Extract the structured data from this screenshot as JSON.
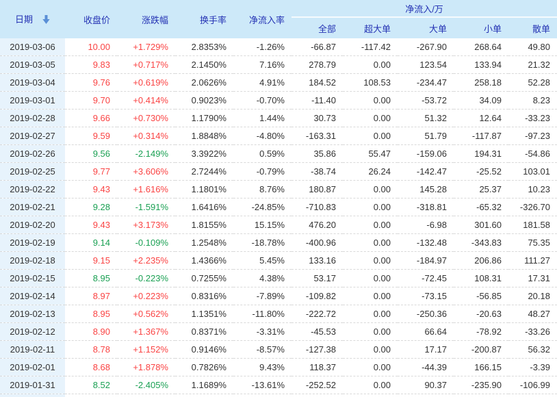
{
  "table": {
    "columns": {
      "date": "日期",
      "close": "收盘价",
      "change": "涨跌幅",
      "turnover": "换手率",
      "inflow_rate": "净流入率",
      "group": "净流入/万",
      "sub": [
        "全部",
        "超大单",
        "大单",
        "小单",
        "散单"
      ]
    },
    "sort_icon": "descending-arrow",
    "rows": [
      {
        "date": "2019-03-06",
        "close": "10.00",
        "change": "+1.729%",
        "turnover": "2.8353%",
        "inflow_rate": "-1.26%",
        "net_all": "-66.87",
        "net_super": "-117.42",
        "net_large": "-267.90",
        "net_small": "268.64",
        "net_retail": "49.80"
      },
      {
        "date": "2019-03-05",
        "close": "9.83",
        "change": "+0.717%",
        "turnover": "2.1450%",
        "inflow_rate": "7.16%",
        "net_all": "278.79",
        "net_super": "0.00",
        "net_large": "123.54",
        "net_small": "133.94",
        "net_retail": "21.32"
      },
      {
        "date": "2019-03-04",
        "close": "9.76",
        "change": "+0.619%",
        "turnover": "2.0626%",
        "inflow_rate": "4.91%",
        "net_all": "184.52",
        "net_super": "108.53",
        "net_large": "-234.47",
        "net_small": "258.18",
        "net_retail": "52.28"
      },
      {
        "date": "2019-03-01",
        "close": "9.70",
        "change": "+0.414%",
        "turnover": "0.9023%",
        "inflow_rate": "-0.70%",
        "net_all": "-11.40",
        "net_super": "0.00",
        "net_large": "-53.72",
        "net_small": "34.09",
        "net_retail": "8.23"
      },
      {
        "date": "2019-02-28",
        "close": "9.66",
        "change": "+0.730%",
        "turnover": "1.1790%",
        "inflow_rate": "1.44%",
        "net_all": "30.73",
        "net_super": "0.00",
        "net_large": "51.32",
        "net_small": "12.64",
        "net_retail": "-33.23"
      },
      {
        "date": "2019-02-27",
        "close": "9.59",
        "change": "+0.314%",
        "turnover": "1.8848%",
        "inflow_rate": "-4.80%",
        "net_all": "-163.31",
        "net_super": "0.00",
        "net_large": "51.79",
        "net_small": "-117.87",
        "net_retail": "-97.23"
      },
      {
        "date": "2019-02-26",
        "close": "9.56",
        "change": "-2.149%",
        "turnover": "3.3922%",
        "inflow_rate": "0.59%",
        "net_all": "35.86",
        "net_super": "55.47",
        "net_large": "-159.06",
        "net_small": "194.31",
        "net_retail": "-54.86"
      },
      {
        "date": "2019-02-25",
        "close": "9.77",
        "change": "+3.606%",
        "turnover": "2.7244%",
        "inflow_rate": "-0.79%",
        "net_all": "-38.74",
        "net_super": "26.24",
        "net_large": "-142.47",
        "net_small": "-25.52",
        "net_retail": "103.01"
      },
      {
        "date": "2019-02-22",
        "close": "9.43",
        "change": "+1.616%",
        "turnover": "1.1801%",
        "inflow_rate": "8.76%",
        "net_all": "180.87",
        "net_super": "0.00",
        "net_large": "145.28",
        "net_small": "25.37",
        "net_retail": "10.23"
      },
      {
        "date": "2019-02-21",
        "close": "9.28",
        "change": "-1.591%",
        "turnover": "1.6416%",
        "inflow_rate": "-24.85%",
        "net_all": "-710.83",
        "net_super": "0.00",
        "net_large": "-318.81",
        "net_small": "-65.32",
        "net_retail": "-326.70"
      },
      {
        "date": "2019-02-20",
        "close": "9.43",
        "change": "+3.173%",
        "turnover": "1.8155%",
        "inflow_rate": "15.15%",
        "net_all": "476.20",
        "net_super": "0.00",
        "net_large": "-6.98",
        "net_small": "301.60",
        "net_retail": "181.58"
      },
      {
        "date": "2019-02-19",
        "close": "9.14",
        "change": "-0.109%",
        "turnover": "1.2548%",
        "inflow_rate": "-18.78%",
        "net_all": "-400.96",
        "net_super": "0.00",
        "net_large": "-132.48",
        "net_small": "-343.83",
        "net_retail": "75.35"
      },
      {
        "date": "2019-02-18",
        "close": "9.15",
        "change": "+2.235%",
        "turnover": "1.4366%",
        "inflow_rate": "5.45%",
        "net_all": "133.16",
        "net_super": "0.00",
        "net_large": "-184.97",
        "net_small": "206.86",
        "net_retail": "111.27"
      },
      {
        "date": "2019-02-15",
        "close": "8.95",
        "change": "-0.223%",
        "turnover": "0.7255%",
        "inflow_rate": "4.38%",
        "net_all": "53.17",
        "net_super": "0.00",
        "net_large": "-72.45",
        "net_small": "108.31",
        "net_retail": "17.31"
      },
      {
        "date": "2019-02-14",
        "close": "8.97",
        "change": "+0.223%",
        "turnover": "0.8316%",
        "inflow_rate": "-7.89%",
        "net_all": "-109.82",
        "net_super": "0.00",
        "net_large": "-73.15",
        "net_small": "-56.85",
        "net_retail": "20.18"
      },
      {
        "date": "2019-02-13",
        "close": "8.95",
        "change": "+0.562%",
        "turnover": "1.1351%",
        "inflow_rate": "-11.80%",
        "net_all": "-222.72",
        "net_super": "0.00",
        "net_large": "-250.36",
        "net_small": "-20.63",
        "net_retail": "48.27"
      },
      {
        "date": "2019-02-12",
        "close": "8.90",
        "change": "+1.367%",
        "turnover": "0.8371%",
        "inflow_rate": "-3.31%",
        "net_all": "-45.53",
        "net_super": "0.00",
        "net_large": "66.64",
        "net_small": "-78.92",
        "net_retail": "-33.26"
      },
      {
        "date": "2019-02-11",
        "close": "8.78",
        "change": "+1.152%",
        "turnover": "0.9146%",
        "inflow_rate": "-8.57%",
        "net_all": "-127.38",
        "net_super": "0.00",
        "net_large": "17.17",
        "net_small": "-200.87",
        "net_retail": "56.32"
      },
      {
        "date": "2019-02-01",
        "close": "8.68",
        "change": "+1.878%",
        "turnover": "0.7826%",
        "inflow_rate": "9.43%",
        "net_all": "118.37",
        "net_super": "0.00",
        "net_large": "-44.39",
        "net_small": "166.15",
        "net_retail": "-3.39"
      },
      {
        "date": "2019-01-31",
        "close": "8.52",
        "change": "-2.405%",
        "turnover": "1.1689%",
        "inflow_rate": "-13.61%",
        "net_all": "-252.52",
        "net_super": "0.00",
        "net_large": "90.37",
        "net_small": "-235.90",
        "net_retail": "-106.99"
      }
    ]
  },
  "colors": {
    "up_red": "#fa4343",
    "down_green": "#1aa053",
    "header_text_blue": "#2533b4",
    "header_bg": "#cde9f9",
    "date_column_bg": "#e7f3fc",
    "sort_arrow_blue": "#5a8fd6"
  }
}
